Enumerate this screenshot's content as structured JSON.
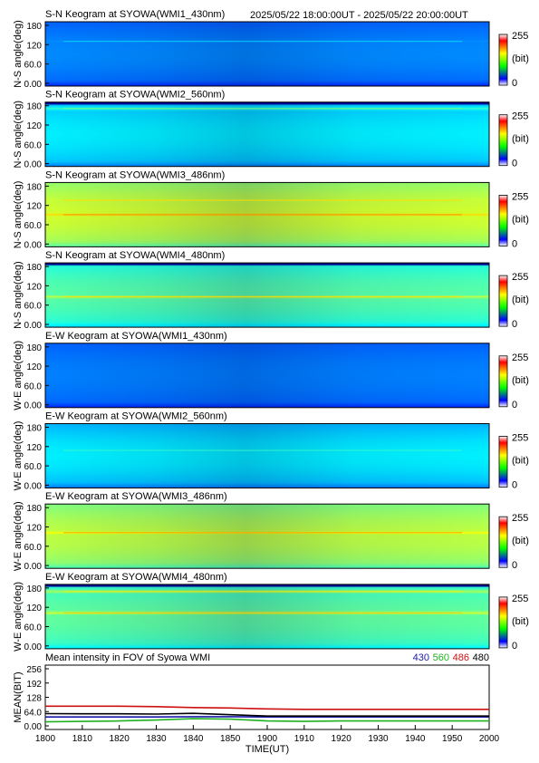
{
  "header": {
    "time_range": "2025/05/22 18:00:00UT - 2025/05/22 20:00:00UT"
  },
  "colorbar": {
    "max_label": "255",
    "unit_label": "(bit)",
    "min_label": "0"
  },
  "y_ticks": [
    "180",
    "120",
    "60.0",
    "0.00"
  ],
  "panels": [
    {
      "title": "S-N Keogram at SYOWA(WMI1_430nm)",
      "ylabel": "N-S angle(deg)",
      "level": 0.22,
      "variation": 0.04,
      "bright_lines": [
        {
          "y": 125,
          "level": 0.27
        }
      ],
      "top_dark": 0
    },
    {
      "title": "S-N Keogram at SYOWA(WMI2_560nm)",
      "ylabel": "N-S angle(deg)",
      "level": 0.31,
      "variation": 0.05,
      "bright_lines": [
        {
          "y": 162,
          "level": 0.42
        }
      ],
      "top_dark": 1
    },
    {
      "title": "S-N Keogram at SYOWA(WMI3_486nm)",
      "ylabel": "N-S angle(deg)",
      "level": 0.52,
      "variation": 0.06,
      "bright_lines": [
        {
          "y": 90,
          "level": 0.66
        },
        {
          "y": 130,
          "level": 0.58
        }
      ],
      "top_dark": 0
    },
    {
      "title": "S-N Keogram at SYOWA(WMI4_480nm)",
      "ylabel": "N-S angle(deg)",
      "level": 0.4,
      "variation": 0.06,
      "bright_lines": [
        {
          "y": 85,
          "level": 0.58
        }
      ],
      "top_dark": 1
    },
    {
      "title": "E-W Keogram at SYOWA(WMI1_430nm)",
      "ylabel": "W-E angle(deg)",
      "level": 0.22,
      "variation": 0.03,
      "bright_lines": [],
      "top_dark": 0
    },
    {
      "title": "E-W Keogram at SYOWA(WMI2_560nm)",
      "ylabel": "W-E angle(deg)",
      "level": 0.3,
      "variation": 0.06,
      "bright_lines": [
        {
          "y": 105,
          "level": 0.36
        }
      ],
      "top_dark": 0
    },
    {
      "title": "E-W Keogram at SYOWA(WMI3_486nm)",
      "ylabel": "W-E angle(deg)",
      "level": 0.5,
      "variation": 0.06,
      "bright_lines": [
        {
          "y": 100,
          "level": 0.64
        }
      ],
      "top_dark": 0
    },
    {
      "title": "E-W Keogram at SYOWA(WMI4_480nm)",
      "ylabel": "W-E angle(deg)",
      "level": 0.42,
      "variation": 0.05,
      "bright_lines": [
        {
          "y": 160,
          "level": 0.56
        },
        {
          "y": 100,
          "level": 0.6
        }
      ],
      "top_dark": 1
    }
  ],
  "chart_data": {
    "type": "line",
    "title": "Mean intensity in FOV of Syowa WMI",
    "xlabel": "TIME(UT)",
    "ylabel": "MEAN(BIT)",
    "xlim": [
      1800,
      2000
    ],
    "ylim": [
      0,
      256
    ],
    "x_ticks": [
      "1800",
      "1810",
      "1820",
      "1830",
      "1840",
      "1850",
      "1900",
      "1910",
      "1920",
      "1930",
      "1940",
      "1950",
      "2000"
    ],
    "y_ticks": [
      "256",
      "192",
      "128",
      "64.0",
      "0.00"
    ],
    "x": [
      0,
      10,
      20,
      30,
      40,
      50,
      60,
      70,
      80,
      90,
      100,
      110,
      120
    ],
    "series": [
      {
        "name": "430",
        "color": "#1a1aaa",
        "values": [
          40,
          40,
          40,
          40,
          41,
          41,
          40,
          40,
          40,
          40,
          40,
          40,
          40
        ]
      },
      {
        "name": "560",
        "color": "#1fb21f",
        "values": [
          18,
          20,
          22,
          26,
          32,
          30,
          22,
          20,
          22,
          22,
          22,
          22,
          22
        ]
      },
      {
        "name": "486",
        "color": "#cc1111",
        "values": [
          88,
          88,
          88,
          86,
          82,
          80,
          76,
          74,
          74,
          74,
          74,
          74,
          74
        ]
      },
      {
        "name": "480",
        "color": "#000000",
        "values": [
          55,
          54,
          54,
          53,
          56,
          50,
          44,
          44,
          44,
          44,
          44,
          44,
          44
        ]
      }
    ]
  }
}
